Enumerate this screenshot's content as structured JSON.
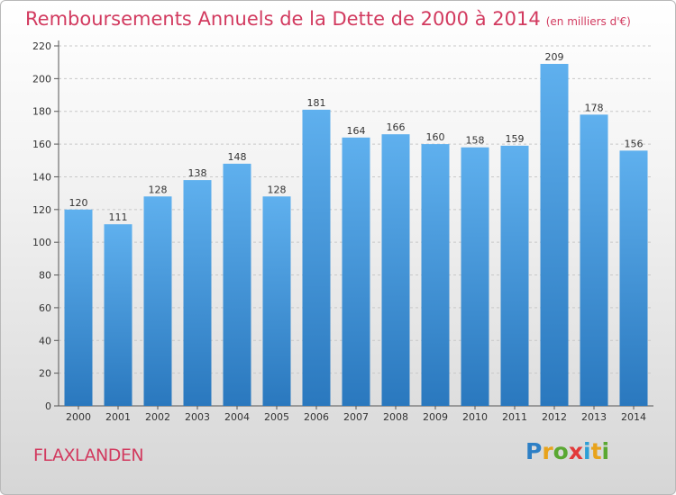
{
  "header": {
    "title": "Remboursements Annuels de la Dette de 2000 à 2014",
    "unit": "(en milliers d'€)"
  },
  "footer": {
    "commune": "FLAXLANDEN",
    "brand": "Proxiti"
  },
  "colors": {
    "accent": "#d23a5f",
    "bar_top": "#5fb0ee",
    "bar_bottom": "#2a78be"
  },
  "chart_data": {
    "type": "bar",
    "title": "Remboursements Annuels de la Dette de 2000 à 2014",
    "xlabel": "",
    "ylabel": "",
    "categories": [
      "2000",
      "2001",
      "2002",
      "2003",
      "2004",
      "2005",
      "2006",
      "2007",
      "2008",
      "2009",
      "2010",
      "2011",
      "2012",
      "2013",
      "2014"
    ],
    "values": [
      120,
      111,
      128,
      138,
      148,
      128,
      181,
      164,
      166,
      160,
      158,
      159,
      209,
      178,
      156
    ],
    "ylim": [
      0,
      220
    ],
    "yticks": [
      0,
      20,
      40,
      60,
      80,
      100,
      120,
      140,
      160,
      180,
      200,
      220
    ],
    "grid": true,
    "data_labels": true
  }
}
